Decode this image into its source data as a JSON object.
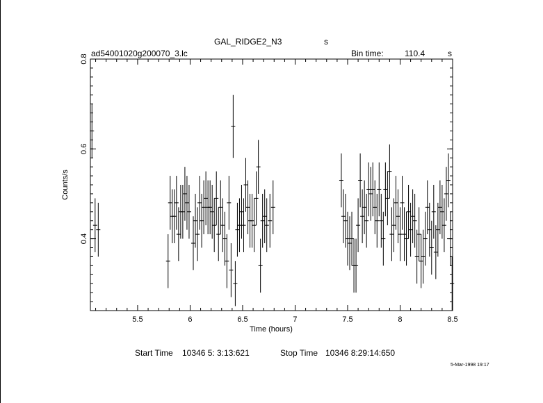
{
  "header": {
    "object": "GAL_RIDGE2_N3",
    "object_unit": "s",
    "file": "ad54001020g200070_3.lc",
    "bin_label": "Bin time:",
    "bin_value": "110.4",
    "bin_unit": "s"
  },
  "footer": {
    "start_label": "Start Time",
    "start_value": "10346  5: 3:13:621",
    "stop_label": "Stop Time",
    "stop_value": "10346  8:29:14:650",
    "date_stamp": "5-Mar-1998 19:17"
  },
  "chart_data": {
    "type": "scatter",
    "title": "GAL_RIDGE2_N3",
    "xlabel": "Time (hours)",
    "ylabel": "Counts/s",
    "xlim": [
      5.05,
      8.5
    ],
    "ylim": [
      0.24,
      0.8
    ],
    "x_ticks": [
      "5.5",
      "6",
      "6.5",
      "7",
      "7.5",
      "8",
      "8.5"
    ],
    "x_tick_values": [
      5.5,
      6,
      6.5,
      7,
      7.5,
      8,
      8.5
    ],
    "y_ticks": [
      "0.4",
      "0.6",
      "0.8"
    ],
    "y_tick_values": [
      0.4,
      0.6,
      0.8
    ],
    "grid": false,
    "series": [
      {
        "x": [
          5.065,
          5.095,
          5.125,
          5.79,
          5.81,
          5.83,
          5.85,
          5.87,
          5.89,
          5.91,
          5.93,
          5.95,
          5.97,
          5.99,
          6.03,
          6.05,
          6.07,
          6.09,
          6.11,
          6.13,
          6.15,
          6.17,
          6.19,
          6.21,
          6.23,
          6.25,
          6.27,
          6.29,
          6.31,
          6.33,
          6.35,
          6.37,
          6.39,
          6.41,
          6.43,
          6.45,
          6.47,
          6.49,
          6.51,
          6.53,
          6.55,
          6.57,
          6.59,
          6.61,
          6.63,
          6.65,
          6.67,
          6.69,
          6.71,
          6.73,
          6.76,
          6.79,
          7.44,
          7.46,
          7.48,
          7.5,
          7.52,
          7.54,
          7.56,
          7.58,
          7.6,
          7.62,
          7.64,
          7.66,
          7.68,
          7.7,
          7.72,
          7.74,
          7.76,
          7.78,
          7.8,
          7.82,
          7.84,
          7.86,
          7.88,
          7.9,
          7.92,
          7.94,
          7.96,
          7.98,
          8.0,
          8.02,
          8.04,
          8.06,
          8.08,
          8.1,
          8.12,
          8.14,
          8.16,
          8.18,
          8.2,
          8.22,
          8.24,
          8.26,
          8.28,
          8.3,
          8.32,
          8.34,
          8.36,
          8.38,
          8.4,
          8.42,
          8.44,
          8.46,
          8.48,
          8.495
        ],
        "y": [
          0.64,
          0.43,
          0.42,
          0.35,
          0.48,
          0.45,
          0.45,
          0.48,
          0.41,
          0.46,
          0.46,
          0.5,
          0.48,
          0.46,
          0.39,
          0.44,
          0.41,
          0.48,
          0.44,
          0.47,
          0.49,
          0.47,
          0.47,
          0.46,
          0.43,
          0.49,
          0.41,
          0.47,
          0.43,
          0.4,
          0.35,
          0.48,
          0.33,
          0.65,
          0.3,
          0.42,
          0.43,
          0.46,
          0.43,
          0.52,
          0.47,
          0.44,
          0.44,
          0.43,
          0.49,
          0.56,
          0.34,
          0.44,
          0.45,
          0.43,
          0.44,
          0.47,
          0.53,
          0.45,
          0.44,
          0.4,
          0.39,
          0.4,
          0.34,
          0.34,
          0.43,
          0.53,
          0.45,
          0.47,
          0.44,
          0.51,
          0.5,
          0.51,
          0.47,
          0.44,
          0.51,
          0.44,
          0.4,
          0.51,
          0.49,
          0.55,
          0.41,
          0.43,
          0.48,
          0.45,
          0.41,
          0.48,
          0.41,
          0.4,
          0.46,
          0.42,
          0.45,
          0.44,
          0.36,
          0.41,
          0.35,
          0.36,
          0.4,
          0.47,
          0.42,
          0.38,
          0.46,
          0.37,
          0.42,
          0.47,
          0.46,
          0.43,
          0.5,
          0.53,
          0.4,
          0.3
        ],
        "yerr": [
          0.06,
          0.06,
          0.06,
          0.06,
          0.06,
          0.06,
          0.06,
          0.06,
          0.06,
          0.06,
          0.06,
          0.06,
          0.06,
          0.06,
          0.06,
          0.06,
          0.06,
          0.06,
          0.06,
          0.06,
          0.06,
          0.06,
          0.06,
          0.06,
          0.06,
          0.06,
          0.06,
          0.06,
          0.06,
          0.06,
          0.06,
          0.06,
          0.06,
          0.07,
          0.05,
          0.06,
          0.06,
          0.06,
          0.06,
          0.06,
          0.06,
          0.06,
          0.06,
          0.06,
          0.06,
          0.06,
          0.06,
          0.06,
          0.06,
          0.06,
          0.06,
          0.06,
          0.06,
          0.06,
          0.06,
          0.06,
          0.06,
          0.06,
          0.06,
          0.06,
          0.06,
          0.06,
          0.06,
          0.06,
          0.06,
          0.06,
          0.06,
          0.06,
          0.06,
          0.06,
          0.06,
          0.06,
          0.06,
          0.06,
          0.06,
          0.06,
          0.06,
          0.06,
          0.06,
          0.06,
          0.06,
          0.06,
          0.06,
          0.06,
          0.06,
          0.06,
          0.06,
          0.06,
          0.06,
          0.06,
          0.06,
          0.06,
          0.06,
          0.06,
          0.06,
          0.06,
          0.06,
          0.06,
          0.06,
          0.06,
          0.06,
          0.06,
          0.06,
          0.06,
          0.06,
          0.06
        ]
      }
    ]
  }
}
